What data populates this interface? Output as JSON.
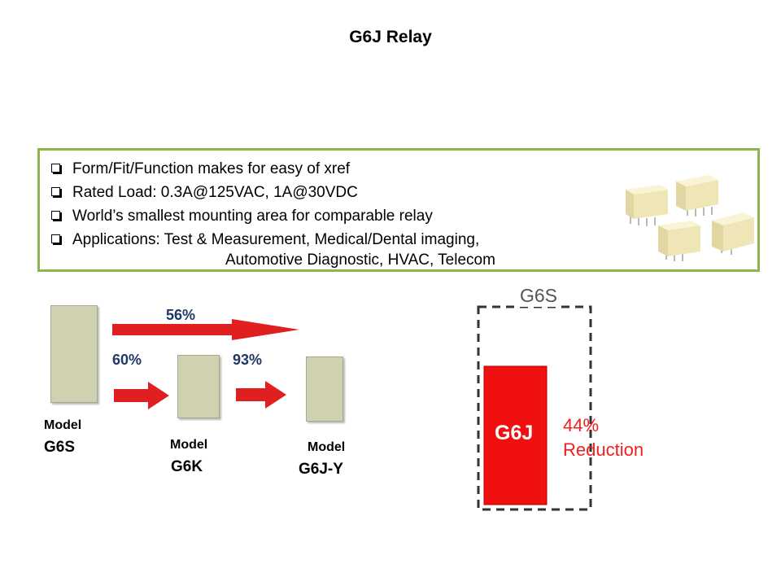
{
  "title": "G6J Relay",
  "bullets": [
    "Form/Fit/Function makes for easy of xref",
    "Rated Load: 0.3A@125VAC,  1A@30VDC",
    "World’s smallest mounting area for comparable relay",
    "Applications:  Test & Measurement, Medical/Dental imaging,"
  ],
  "bullet_continuation": "Automotive Diagnostic, HVAC, Telecom",
  "comparison": {
    "overall_pct": "56%",
    "step1_pct": "60%",
    "step2_pct": "93%",
    "models": [
      {
        "label": "Model",
        "name": "G6S"
      },
      {
        "label": "Model",
        "name": "G6K"
      },
      {
        "label": "Model",
        "name": "G6J-Y"
      }
    ]
  },
  "footprint": {
    "outline_label": "G6S",
    "inner_label": "G6J",
    "reduction_pct": "44%",
    "reduction_word": "Reduction"
  },
  "colors": {
    "box_border": "#8db64e",
    "arrow_red": "#e02020",
    "pct_text": "#1f3864",
    "block_fill": "#d0d1b0",
    "footprint_red": "#f01010"
  }
}
